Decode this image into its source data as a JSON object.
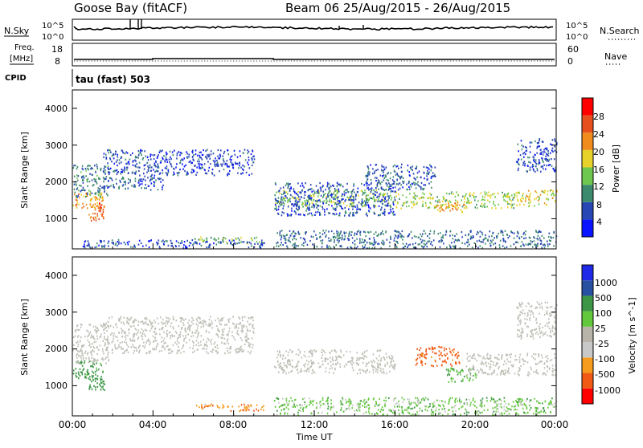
{
  "header": {
    "radar": "Goose Bay (fitACF)",
    "beam_and_dates": "Beam 06 25/Aug/2015 - 26/Aug/2015"
  },
  "summary": {
    "nsky_label": "N.Sky",
    "nsky_ticks": [
      "10^5",
      "10^0"
    ],
    "nsearch_label": "N.Search",
    "nsearch_ticks": [
      "10^5",
      "10^0"
    ],
    "freq_label_line1": "Freq.",
    "freq_label_line2": "[MHz]",
    "freq_ticks": [
      "18",
      "8"
    ],
    "nave_label": "Nave",
    "nave_ticks": [
      "60",
      "0"
    ],
    "cpid_label": "CPID",
    "cpid_value": "tau (fast) 503"
  },
  "colors": {
    "power_scale": [
      "#0a14ff",
      "#2846b4",
      "#3c8a6e",
      "#6ec850",
      "#e6d22a",
      "#f08c1e",
      "#e6501e",
      "#ff0000"
    ],
    "velocity_scale": [
      "#ff0000",
      "#f05a14",
      "#f59b1e",
      "#c8c8c8",
      "#b9b4aa",
      "#64c83c",
      "#3c9646",
      "#2850a0",
      "#1e28e6"
    ],
    "ground_scatter": "#c0c0b8"
  },
  "chart_data": [
    {
      "type": "heatmap",
      "name": "power",
      "title": "",
      "xlabel": "",
      "ylabel": "Slant Range [km]",
      "y_ticks": [
        "1000",
        "2000",
        "3000",
        "4000"
      ],
      "ylim": [
        180,
        4500
      ],
      "x_ticks": [],
      "colorbar_label": "Power [dB]",
      "colorbar_ticks": [
        "4",
        "8",
        "12",
        "16",
        "20",
        "24",
        "28"
      ],
      "colorbar_range": [
        0,
        30
      ],
      "bands": [
        {
          "t0": 0.0,
          "t1": 1.5,
          "r0": 1300,
          "r1": 1750,
          "v": 22
        },
        {
          "t0": 0.8,
          "t1": 1.6,
          "r0": 950,
          "r1": 1450,
          "v": 25
        },
        {
          "t0": 0.0,
          "t1": 1.8,
          "r0": 1600,
          "r1": 2500,
          "v": 9
        },
        {
          "t0": 1.5,
          "t1": 4.5,
          "r0": 1800,
          "r1": 2900,
          "v": 6
        },
        {
          "t0": 4.5,
          "t1": 9.0,
          "r0": 2200,
          "r1": 2900,
          "v": 5
        },
        {
          "t0": 6.0,
          "t1": 9.5,
          "r0": 350,
          "r1": 520,
          "v": 14
        },
        {
          "t0": 0.5,
          "t1": 9.5,
          "r0": 230,
          "r1": 450,
          "v": 6
        },
        {
          "t0": 10.0,
          "t1": 16.0,
          "r0": 1350,
          "r1": 1800,
          "v": 14
        },
        {
          "t0": 10.0,
          "t1": 16.0,
          "r0": 1100,
          "r1": 2000,
          "v": 6
        },
        {
          "t0": 14.5,
          "t1": 18.0,
          "r0": 1800,
          "r1": 2500,
          "v": 7
        },
        {
          "t0": 16.0,
          "t1": 22.0,
          "r0": 1300,
          "r1": 1750,
          "v": 15
        },
        {
          "t0": 18.0,
          "t1": 19.5,
          "r0": 1200,
          "r1": 1500,
          "v": 21
        },
        {
          "t0": 22.0,
          "t1": 24.0,
          "r0": 1350,
          "r1": 1800,
          "v": 18
        },
        {
          "t0": 22.0,
          "t1": 24.0,
          "r0": 2300,
          "r1": 3200,
          "v": 6
        },
        {
          "t0": 10.0,
          "t1": 24.0,
          "r0": 220,
          "r1": 700,
          "v": 8
        }
      ]
    },
    {
      "type": "heatmap",
      "name": "velocity",
      "title": "",
      "xlabel": "Time UT",
      "ylabel": "Slant Range [km]",
      "y_ticks": [
        "1000",
        "2000",
        "3000",
        "4000"
      ],
      "ylim": [
        180,
        4500
      ],
      "x_ticks": [
        "00:00",
        "04:00",
        "08:00",
        "12:00",
        "16:00",
        "20:00",
        "00:00"
      ],
      "xlim": [
        0,
        24
      ],
      "colorbar_label": "Velocity [m s^-1]",
      "colorbar_ticks": [
        "1000",
        "500",
        "100",
        "25",
        "-25",
        "-100",
        "-500",
        "-1000"
      ],
      "colorbar_range": [
        -1000,
        1000
      ],
      "bands": [
        {
          "t0": 0.0,
          "t1": 1.5,
          "r0": 1200,
          "r1": 1700,
          "v": 150
        },
        {
          "t0": 0.8,
          "t1": 1.6,
          "r0": 900,
          "r1": 1300,
          "v": 200
        },
        {
          "t0": 0.0,
          "t1": 1.8,
          "r0": 1600,
          "r1": 2700,
          "v": 0,
          "gs": true
        },
        {
          "t0": 1.5,
          "t1": 9.0,
          "r0": 1900,
          "r1": 2900,
          "v": 0,
          "gs": true
        },
        {
          "t0": 6.0,
          "t1": 9.5,
          "r0": 330,
          "r1": 520,
          "v": -80
        },
        {
          "t0": 10.0,
          "t1": 16.0,
          "r0": 1350,
          "r1": 2000,
          "v": 0,
          "gs": true
        },
        {
          "t0": 17.0,
          "t1": 19.2,
          "r0": 1550,
          "r1": 2100,
          "v": -150
        },
        {
          "t0": 18.5,
          "t1": 20.0,
          "r0": 1100,
          "r1": 1500,
          "v": 90
        },
        {
          "t0": 19.5,
          "t1": 24.0,
          "r0": 1300,
          "r1": 1900,
          "v": 0,
          "gs": true
        },
        {
          "t0": 22.0,
          "t1": 24.0,
          "r0": 2300,
          "r1": 3300,
          "v": 0,
          "gs": true
        },
        {
          "t0": 10.0,
          "t1": 24.0,
          "r0": 220,
          "r1": 700,
          "v": 60
        }
      ]
    }
  ]
}
